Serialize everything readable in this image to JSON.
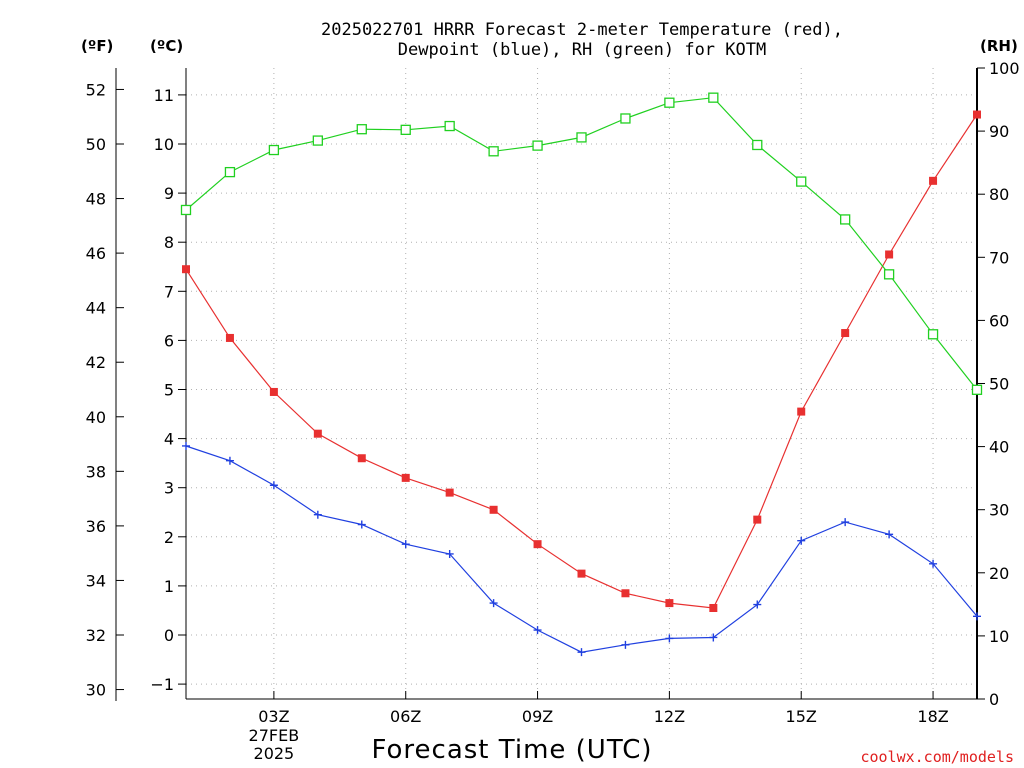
{
  "chart_data": {
    "type": "line",
    "title_line1": "2025022701 HRRR Forecast 2-meter Temperature (red),",
    "title_line2": "Dewpoint (blue), RH (green) for KOTM",
    "xlabel": "Forecast Time (UTC)",
    "credit": "coolwx.com/models",
    "units": {
      "fahrenheit": "(ºF)",
      "celsius": "(ºC)",
      "rh": "(RH)"
    },
    "x_hours": [
      1,
      2,
      3,
      4,
      5,
      6,
      7,
      8,
      9,
      10,
      11,
      12,
      13,
      14,
      15,
      16,
      17,
      18,
      19
    ],
    "xlim": [
      1,
      19
    ],
    "x_ticks": [
      {
        "hour": 3,
        "label": "03Z",
        "sublabel": [
          "27FEB",
          "2025"
        ]
      },
      {
        "hour": 6,
        "label": "06Z"
      },
      {
        "hour": 9,
        "label": "09Z"
      },
      {
        "hour": 12,
        "label": "12Z"
      },
      {
        "hour": 15,
        "label": "15Z"
      },
      {
        "hour": 18,
        "label": "18Z"
      }
    ],
    "celsius_axis": {
      "ylim": [
        -1.2,
        11.5
      ],
      "ticks": [
        -1,
        0,
        1,
        2,
        3,
        4,
        5,
        6,
        7,
        8,
        9,
        10,
        11
      ]
    },
    "fahrenheit_axis": {
      "ticks": [
        30,
        32,
        34,
        36,
        38,
        40,
        42,
        44,
        46,
        48,
        50,
        52
      ]
    },
    "rh_axis": {
      "ylim": [
        0,
        100
      ],
      "ticks": [
        0,
        10,
        20,
        30,
        40,
        50,
        60,
        70,
        80,
        90,
        100
      ]
    },
    "series": [
      {
        "name": "Temperature (red)",
        "axis": "celsius",
        "color": "#e83030",
        "marker": "filled-square",
        "values": [
          7.45,
          6.05,
          4.95,
          4.1,
          3.6,
          3.2,
          2.9,
          2.55,
          1.85,
          1.25,
          0.85,
          0.65,
          0.55,
          2.35,
          4.55,
          6.15,
          7.75,
          9.25,
          10.6
        ]
      },
      {
        "name": "Dewpoint (blue)",
        "axis": "celsius",
        "color": "#2040e0",
        "marker": "plus",
        "values": [
          3.85,
          3.55,
          3.05,
          2.45,
          2.25,
          1.85,
          1.65,
          0.65,
          0.1,
          -0.35,
          -0.2,
          -0.07,
          -0.05,
          0.62,
          1.92,
          2.3,
          2.05,
          1.45,
          0.38
        ]
      },
      {
        "name": "RH (green)",
        "axis": "rh",
        "color": "#20d020",
        "marker": "open-square",
        "values": [
          77.5,
          83.5,
          87,
          88.5,
          90.3,
          90.2,
          90.8,
          86.8,
          87.7,
          89,
          92,
          94.5,
          95.3,
          87.8,
          82,
          76,
          67.3,
          57.8,
          49
        ]
      }
    ]
  }
}
